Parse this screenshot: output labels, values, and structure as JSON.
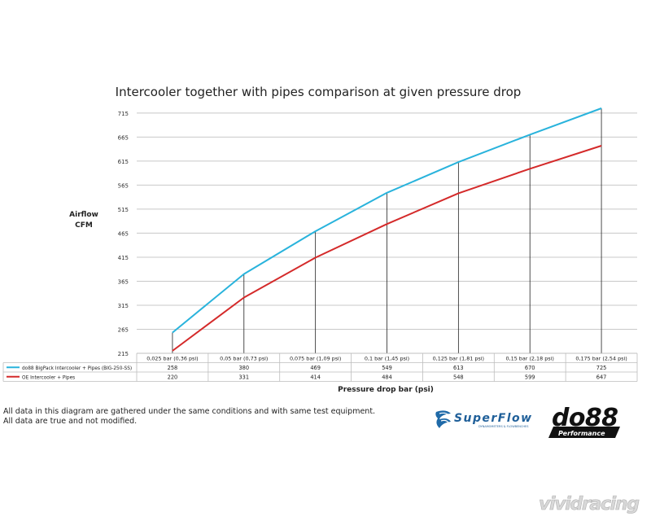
{
  "chart_data": {
    "type": "line",
    "title": "Intercooler together with pipes comparison at given pressure drop",
    "ylabel_line1": "Airflow",
    "ylabel_line2": "CFM",
    "xlabel": "Pressure drop bar (psi)",
    "ylim": [
      215,
      730
    ],
    "yticks": [
      215,
      265,
      315,
      365,
      415,
      465,
      515,
      565,
      615,
      665,
      715
    ],
    "grid": true,
    "legend": "data table below chart",
    "categories": [
      "0,025 bar (0,36 psi)",
      "0,05 bar (0,73 psi)",
      "0,075 bar (1,09 psi)",
      "0,1 bar (1,45 psi)",
      "0,125 bar (1,81 psi)",
      "0,15 bar (2,18 psi)",
      "0,175 bar (2,54 psi)"
    ],
    "series": [
      {
        "name": "do88 BigPack Intercooler + Pipes (BIG-250-SS)",
        "color": "#29b3dc",
        "values": [
          258,
          380,
          469,
          549,
          613,
          670,
          725
        ]
      },
      {
        "name": "OE Intercooler + Pipes",
        "color": "#d42a2a",
        "values": [
          220,
          331,
          414,
          484,
          548,
          599,
          647
        ]
      }
    ]
  },
  "footnotes": [
    "All data in this diagram are gathered under the same conditions and with same test equipment.",
    "All data are true and not modified."
  ],
  "logos": {
    "superflow": "SuperFlow",
    "superflow_tagline": "DYNAMOMETERS & FLOWBENCHES",
    "do88": "do88",
    "do88_sub": "Performance",
    "vividracing": "vividracing"
  }
}
